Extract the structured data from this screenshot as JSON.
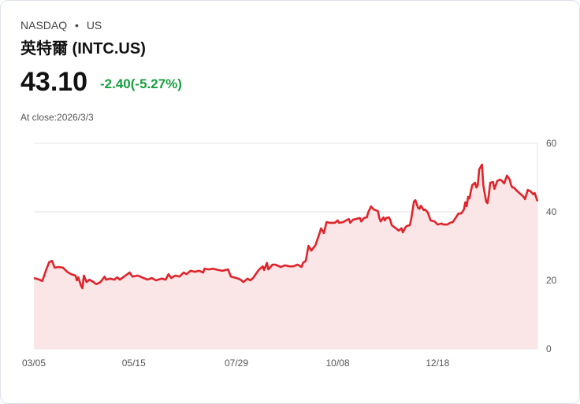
{
  "header": {
    "exchange": "NASDAQ",
    "dot": "•",
    "country": "US",
    "title": "英特爾 (INTC.US)",
    "price": "43.10",
    "change": "-2.40(-5.27%)",
    "close_label": "At close:2026/3/3"
  },
  "colors": {
    "line": "#e0242b",
    "fill": "#fbe6e7",
    "up": "#18a040"
  },
  "chart_data": {
    "type": "area",
    "title": "",
    "xlabel": "",
    "ylabel": "",
    "xlim": [
      0,
      363
    ],
    "ylim": [
      0,
      60
    ],
    "x_ticks": [
      {
        "day": 0,
        "label": "03/05"
      },
      {
        "day": 72,
        "label": "05/15"
      },
      {
        "day": 146,
        "label": "07/29"
      },
      {
        "day": 219,
        "label": "10/08"
      },
      {
        "day": 291,
        "label": "12/18"
      }
    ],
    "y_ticks": [
      {
        "value": 60,
        "label": "60"
      },
      {
        "value": 40,
        "label": "40"
      },
      {
        "value": 20,
        "label": "20"
      },
      {
        "value": 0,
        "label": "0"
      }
    ],
    "grid": true,
    "points": [
      [
        0,
        20.7
      ],
      [
        4,
        20.2
      ],
      [
        6,
        19.8
      ],
      [
        9,
        23.2
      ],
      [
        11,
        25.3
      ],
      [
        13,
        25.7
      ],
      [
        15,
        23.7
      ],
      [
        18,
        23.9
      ],
      [
        21,
        23.7
      ],
      [
        24,
        22.5
      ],
      [
        27,
        21.8
      ],
      [
        30,
        21.4
      ],
      [
        31,
        20.0
      ],
      [
        32,
        20.9
      ],
      [
        34,
        18.4
      ],
      [
        35,
        17.7
      ],
      [
        36,
        21.4
      ],
      [
        38,
        19.5
      ],
      [
        40,
        20.2
      ],
      [
        43,
        19.5
      ],
      [
        45,
        18.9
      ],
      [
        48,
        19.5
      ],
      [
        51,
        21.1
      ],
      [
        52,
        20.2
      ],
      [
        55,
        20.5
      ],
      [
        58,
        20.2
      ],
      [
        60,
        20.9
      ],
      [
        62,
        20.2
      ],
      [
        66,
        21.4
      ],
      [
        69,
        22.3
      ],
      [
        71,
        21.1
      ],
      [
        75,
        21.4
      ],
      [
        79,
        20.7
      ],
      [
        82,
        20.2
      ],
      [
        85,
        20.7
      ],
      [
        88,
        20.0
      ],
      [
        92,
        20.5
      ],
      [
        95,
        20.2
      ],
      [
        97,
        21.8
      ],
      [
        99,
        20.7
      ],
      [
        102,
        21.4
      ],
      [
        105,
        21.1
      ],
      [
        108,
        22.3
      ],
      [
        110,
        21.8
      ],
      [
        113,
        22.8
      ],
      [
        116,
        22.5
      ],
      [
        119,
        22.8
      ],
      [
        122,
        22.3
      ],
      [
        123,
        23.4
      ],
      [
        126,
        23.2
      ],
      [
        129,
        23.4
      ],
      [
        133,
        23.0
      ],
      [
        136,
        22.8
      ],
      [
        140,
        23.2
      ],
      [
        142,
        21.1
      ],
      [
        146,
        20.7
      ],
      [
        149,
        20.2
      ],
      [
        151,
        19.5
      ],
      [
        154,
        20.5
      ],
      [
        156,
        20.0
      ],
      [
        158,
        20.7
      ],
      [
        162,
        23.0
      ],
      [
        165,
        24.1
      ],
      [
        166,
        23.0
      ],
      [
        168,
        25.1
      ],
      [
        169,
        23.2
      ],
      [
        172,
        24.6
      ],
      [
        174,
        24.6
      ],
      [
        178,
        23.9
      ],
      [
        181,
        24.4
      ],
      [
        184,
        24.1
      ],
      [
        187,
        24.1
      ],
      [
        190,
        24.6
      ],
      [
        193,
        23.9
      ],
      [
        194,
        25.1
      ],
      [
        196,
        25.7
      ],
      [
        198,
        30.1
      ],
      [
        200,
        28.7
      ],
      [
        203,
        30.3
      ],
      [
        206,
        33.8
      ],
      [
        207,
        35.2
      ],
      [
        209,
        33.8
      ],
      [
        211,
        37.0
      ],
      [
        213,
        36.8
      ],
      [
        217,
        36.8
      ],
      [
        219,
        37.5
      ],
      [
        220,
        36.8
      ],
      [
        223,
        37.0
      ],
      [
        225,
        37.5
      ],
      [
        227,
        37.9
      ],
      [
        228,
        36.8
      ],
      [
        230,
        37.7
      ],
      [
        232,
        37.9
      ],
      [
        235,
        38.2
      ],
      [
        236,
        37.2
      ],
      [
        238,
        38.2
      ],
      [
        240,
        38.4
      ],
      [
        241,
        39.8
      ],
      [
        243,
        41.6
      ],
      [
        244,
        41.1
      ],
      [
        245,
        40.7
      ],
      [
        248,
        40.2
      ],
      [
        249,
        38.2
      ],
      [
        250,
        37.2
      ],
      [
        252,
        38.4
      ],
      [
        253,
        37.5
      ],
      [
        254,
        38.2
      ],
      [
        256,
        38.4
      ],
      [
        257,
        37.5
      ],
      [
        258,
        36.1
      ],
      [
        261,
        35.2
      ],
      [
        263,
        34.5
      ],
      [
        265,
        35.2
      ],
      [
        266,
        34.0
      ],
      [
        268,
        35.6
      ],
      [
        269,
        35.9
      ],
      [
        271,
        36.1
      ],
      [
        272,
        37.9
      ],
      [
        273,
        40.5
      ],
      [
        274,
        43.0
      ],
      [
        275,
        43.4
      ],
      [
        277,
        41.1
      ],
      [
        278,
        40.9
      ],
      [
        279,
        41.8
      ],
      [
        281,
        40.5
      ],
      [
        282,
        40.7
      ],
      [
        284,
        39.8
      ],
      [
        286,
        37.5
      ],
      [
        289,
        37.2
      ],
      [
        291,
        36.3
      ],
      [
        294,
        36.6
      ],
      [
        295,
        36.3
      ],
      [
        298,
        36.3
      ],
      [
        300,
        36.8
      ],
      [
        302,
        37.0
      ],
      [
        304,
        38.2
      ],
      [
        306,
        39.5
      ],
      [
        308,
        39.5
      ],
      [
        310,
        40.7
      ],
      [
        311,
        42.8
      ],
      [
        312,
        41.6
      ],
      [
        313,
        44.4
      ],
      [
        314,
        43.9
      ],
      [
        315,
        46.0
      ],
      [
        316,
        47.8
      ],
      [
        318,
        48.5
      ],
      [
        319,
        47.1
      ],
      [
        320,
        47.8
      ],
      [
        321,
        52.4
      ],
      [
        323,
        53.8
      ],
      [
        324,
        47.8
      ],
      [
        326,
        43.0
      ],
      [
        327,
        42.5
      ],
      [
        328,
        45.1
      ],
      [
        329,
        48.5
      ],
      [
        331,
        48.7
      ],
      [
        332,
        46.7
      ],
      [
        334,
        49.0
      ],
      [
        336,
        49.4
      ],
      [
        337,
        49.2
      ],
      [
        339,
        48.3
      ],
      [
        340,
        49.4
      ],
      [
        341,
        50.6
      ],
      [
        343,
        49.4
      ],
      [
        344,
        47.8
      ],
      [
        345,
        47.1
      ],
      [
        346,
        47.1
      ],
      [
        348,
        46.2
      ],
      [
        350,
        45.5
      ],
      [
        353,
        44.4
      ],
      [
        354,
        43.7
      ],
      [
        356,
        46.4
      ],
      [
        358,
        46.0
      ],
      [
        360,
        45.1
      ],
      [
        361,
        45.5
      ],
      [
        363,
        43.1
      ]
    ]
  }
}
